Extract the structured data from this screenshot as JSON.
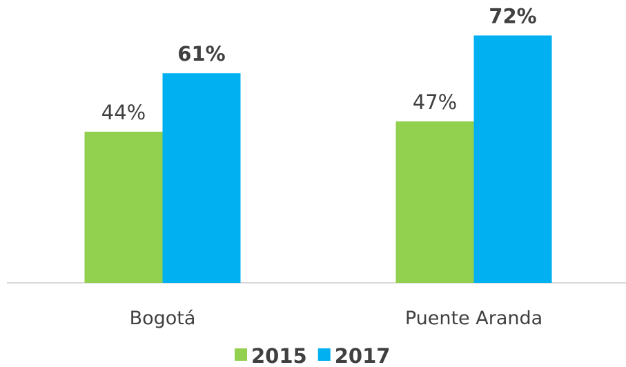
{
  "chart_data": {
    "type": "bar",
    "categories": [
      "Bogotá",
      "Puente Aranda"
    ],
    "series": [
      {
        "name": "2015",
        "color": "#92d050",
        "values": [
          44,
          47
        ],
        "value_labels": [
          "44%",
          "47%"
        ]
      },
      {
        "name": "2017",
        "color": "#00b0f0",
        "values": [
          61,
          72
        ],
        "value_labels": [
          "61%",
          "72%"
        ]
      }
    ],
    "legend": "bottom"
  }
}
